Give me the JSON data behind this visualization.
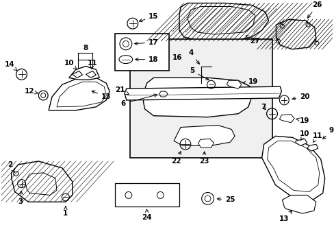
{
  "bg_color": "#ffffff",
  "figsize": [
    4.89,
    3.6
  ],
  "dpi": 100,
  "components": {
    "left_trim_upper": {
      "color": "#000000",
      "lw": 1.0
    },
    "center_pad": {
      "color": "#000000",
      "lw": 1.0
    },
    "right_trim": {
      "color": "#000000",
      "lw": 1.0
    },
    "box16": {
      "color": "#000000",
      "lw": 1.0
    }
  },
  "label_fontsize": 7.5,
  "label_fontsize_small": 6.5
}
